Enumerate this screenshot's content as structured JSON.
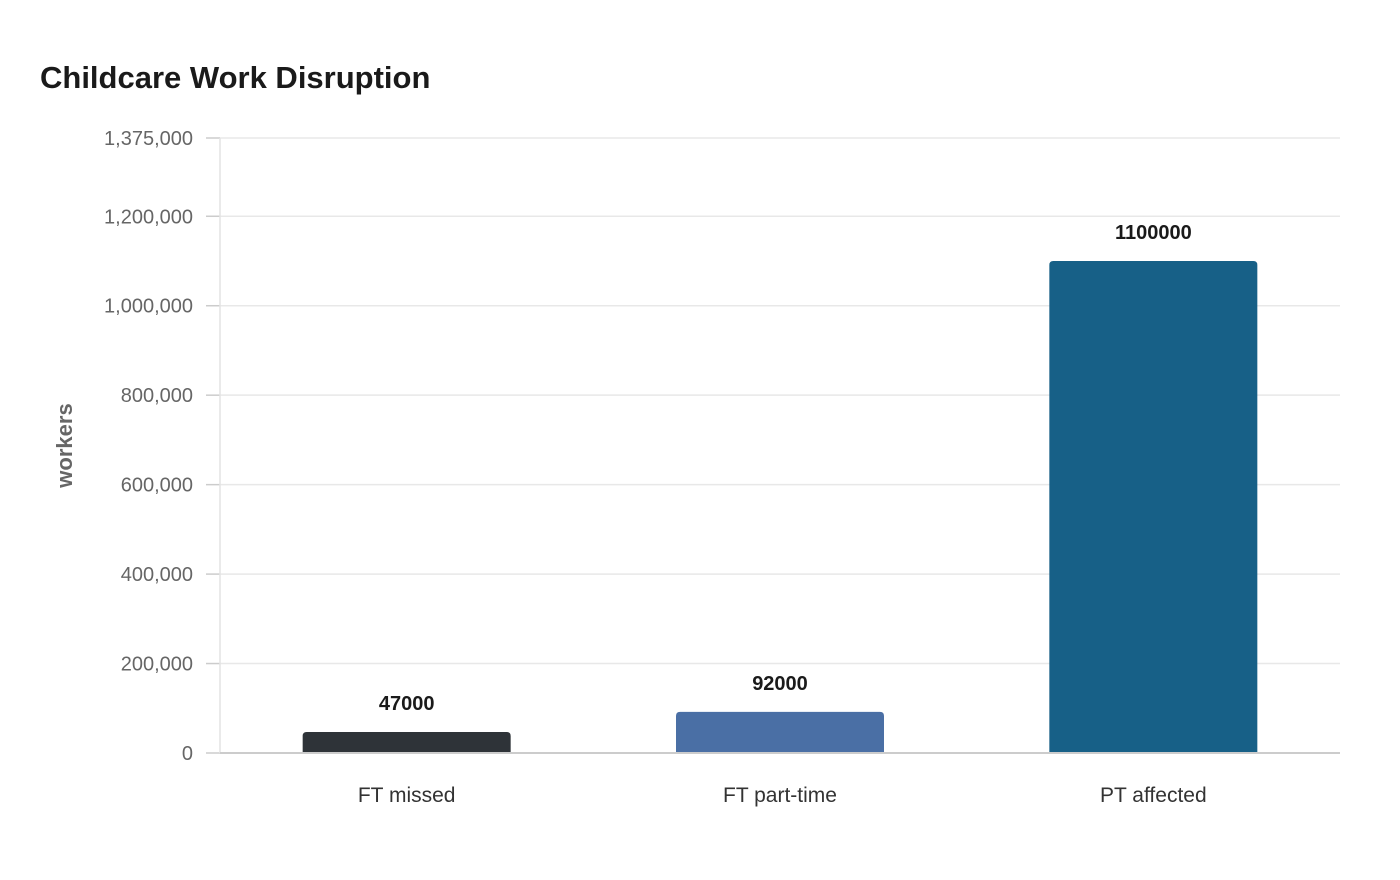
{
  "chart_data": {
    "type": "bar",
    "title": "Childcare Work Disruption",
    "ylabel": "workers",
    "xlabel": "",
    "categories": [
      "FT missed",
      "FT part-time",
      "PT affected"
    ],
    "values": [
      47000,
      92000,
      1100000
    ],
    "value_labels": [
      "47000",
      "92000",
      "1100000"
    ],
    "bar_colors": [
      "#2e3338",
      "#4a6fa5",
      "#176087"
    ],
    "ylim": [
      0,
      1375000
    ],
    "yticks": [
      0,
      200000,
      400000,
      600000,
      800000,
      1000000,
      1200000,
      1375000
    ],
    "ytick_labels": [
      "0",
      "200,000",
      "400,000",
      "600,000",
      "800,000",
      "1,000,000",
      "1,200,000",
      "1,375,000"
    ],
    "grid": true,
    "legend": "none"
  }
}
